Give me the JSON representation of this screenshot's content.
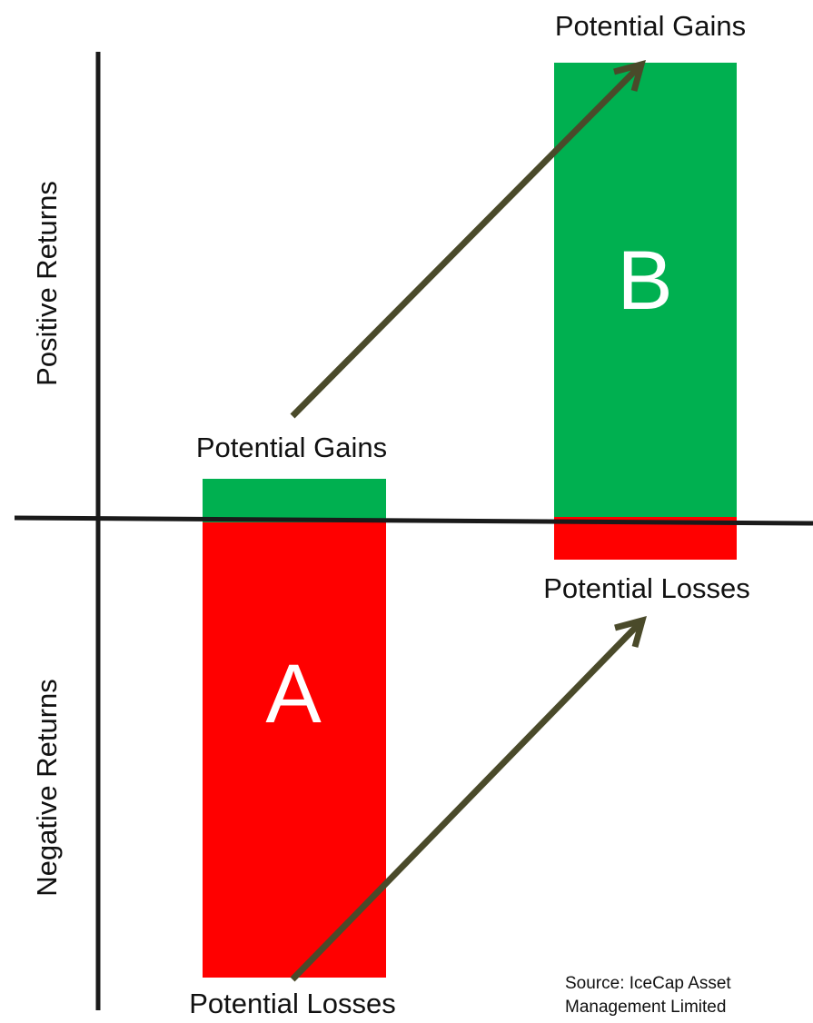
{
  "y_axis": {
    "positive_label": "Positive Returns",
    "negative_label": "Negative Returns"
  },
  "portfolio_a": {
    "letter": "A",
    "gains_label": "Potential Gains",
    "losses_label": "Potential Losses"
  },
  "portfolio_b": {
    "letter": "B",
    "gains_label": "Potential Gains",
    "losses_label": "Potential Losses"
  },
  "source": {
    "line1": "Source: IceCap Asset",
    "line2": "Management Limited"
  },
  "colors": {
    "gain": "#00b050",
    "loss": "#ff0000",
    "arrow": "#4a4a2a",
    "axis": "#1a1a1a",
    "letter": "#ffffff"
  }
}
